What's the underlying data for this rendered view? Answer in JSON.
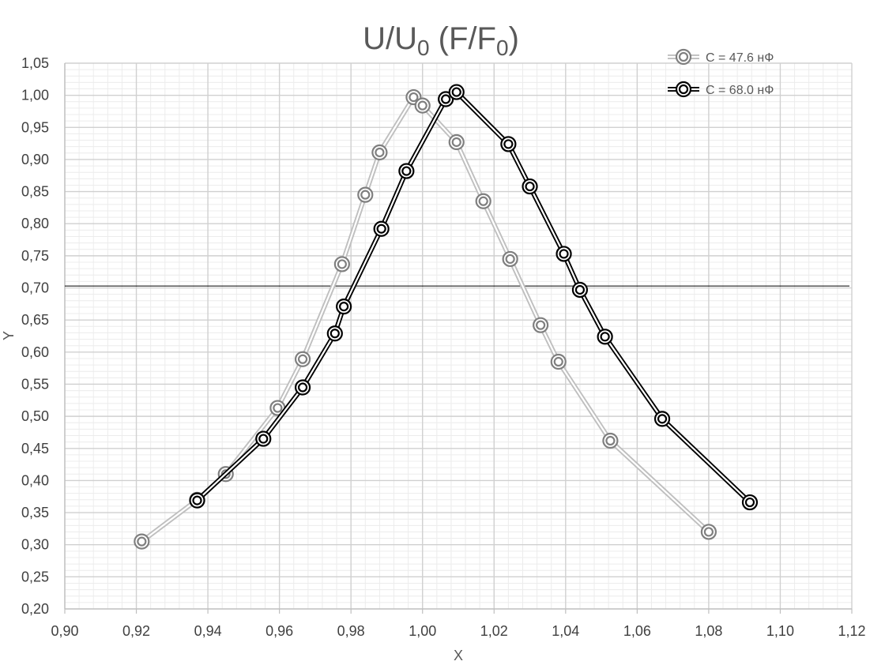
{
  "chart_data": {
    "type": "line",
    "title": {
      "main": "U/U",
      "sub1": "0",
      "mid": " (F/F",
      "sub2": "0",
      "end": ")"
    },
    "xlabel": "X",
    "ylabel": "Y",
    "xlim": [
      0.9,
      1.12
    ],
    "ylim": [
      0.2,
      1.05
    ],
    "x_ticks": [
      "0,90",
      "0,92",
      "0,94",
      "0,96",
      "0,98",
      "1,00",
      "1,02",
      "1,04",
      "1,06",
      "1,08",
      "1,10",
      "1,12"
    ],
    "y_ticks": [
      "0,20",
      "0,25",
      "0,30",
      "0,35",
      "0,40",
      "0,45",
      "0,50",
      "0,55",
      "0,60",
      "0,65",
      "0,70",
      "0,75",
      "0,80",
      "0,85",
      "0,90",
      "0,95",
      "1,00",
      "1,05"
    ],
    "grid": true,
    "legend_position": "top-right",
    "reference_line_y": 0.703,
    "series": [
      {
        "name": "C = 47.6 нФ",
        "color": "#bfbfbf",
        "marker_color": "#7f7f7f",
        "x": [
          0.9215,
          0.937,
          0.945,
          0.9595,
          0.9665,
          0.9775,
          0.984,
          0.988,
          0.9975,
          1.0,
          1.0095,
          1.017,
          1.0245,
          1.033,
          1.038,
          1.0525,
          1.08
        ],
        "y": [
          0.305,
          0.37,
          0.41,
          0.513,
          0.589,
          0.737,
          0.845,
          0.911,
          0.997,
          0.984,
          0.927,
          0.835,
          0.745,
          0.642,
          0.585,
          0.462,
          0.32
        ]
      },
      {
        "name": "C = 68.0 нФ",
        "color": "#000000",
        "marker_color": "#000000",
        "x": [
          0.937,
          0.9555,
          0.9665,
          0.9755,
          0.978,
          0.9885,
          0.9955,
          1.0065,
          1.0095,
          1.024,
          1.03,
          1.0395,
          1.044,
          1.051,
          1.067,
          1.0915
        ],
        "y": [
          0.369,
          0.465,
          0.545,
          0.629,
          0.671,
          0.792,
          0.882,
          0.994,
          1.005,
          0.924,
          0.858,
          0.753,
          0.697,
          0.624,
          0.496,
          0.366
        ]
      }
    ]
  }
}
